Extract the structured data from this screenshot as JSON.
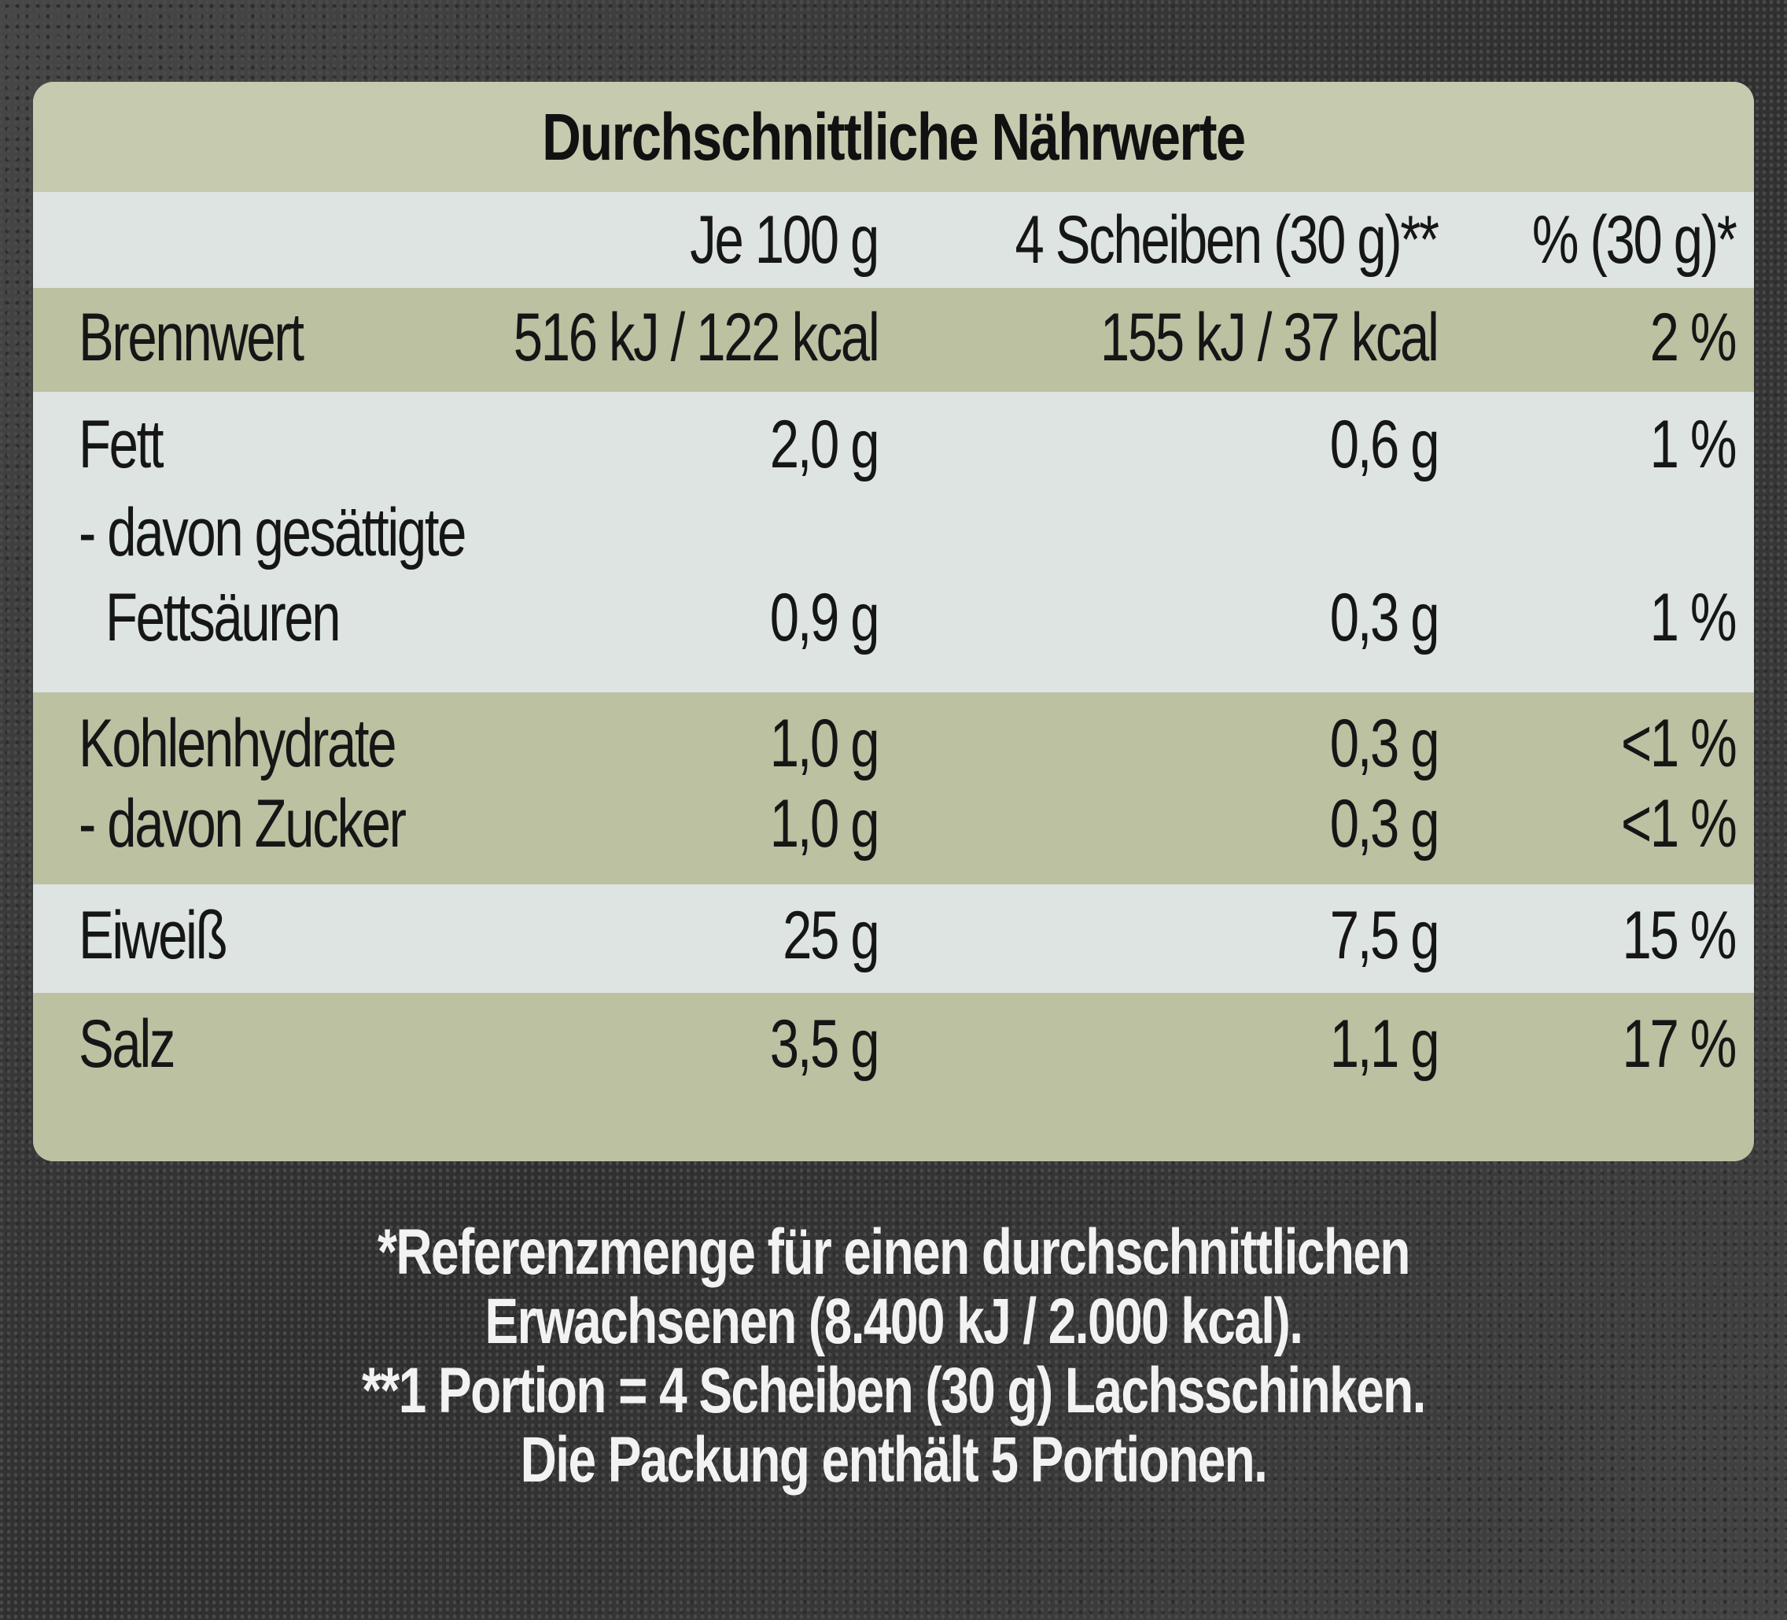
{
  "title": "Durchschnittliche Nährwerte",
  "columns": {
    "per_100g": "Je 100 g",
    "per_portion": "4 Scheiben (30 g)**",
    "percent": "% (30 g)*"
  },
  "rows": [
    {
      "name": "Brennwert",
      "per_100g": "516 kJ / 122 kcal",
      "per_portion": "155 kJ / 37 kcal",
      "percent": "2 %"
    },
    {
      "name": "Fett",
      "per_100g": "2,0 g",
      "per_portion": "0,6 g",
      "percent": "1 %"
    },
    {
      "name": "- davon gesättigte",
      "name2": "Fettsäuren",
      "per_100g": "0,9 g",
      "per_portion": "0,3 g",
      "percent": "1 %"
    },
    {
      "name": "Kohlenhydrate",
      "per_100g": "1,0 g",
      "per_portion": "0,3 g",
      "percent": "<1 %"
    },
    {
      "name": "- davon Zucker",
      "per_100g": "1,0 g",
      "per_portion": "0,3 g",
      "percent": "<1 %"
    },
    {
      "name": "Eiweiß",
      "per_100g": "25 g",
      "per_portion": "7,5 g",
      "percent": "15 %"
    },
    {
      "name": "Salz",
      "per_100g": "3,5 g",
      "per_portion": "1,1 g",
      "percent": "17 %"
    }
  ],
  "footnotes": [
    "*Referenzmenge für einen durchschnittlichen",
    "Erwachsenen (8.400 kJ / 2.000 kcal).",
    "**1 Portion = 4 Scheiben (30 g) Lachsschinken.",
    "Die Packung enthält 5 Portionen."
  ]
}
